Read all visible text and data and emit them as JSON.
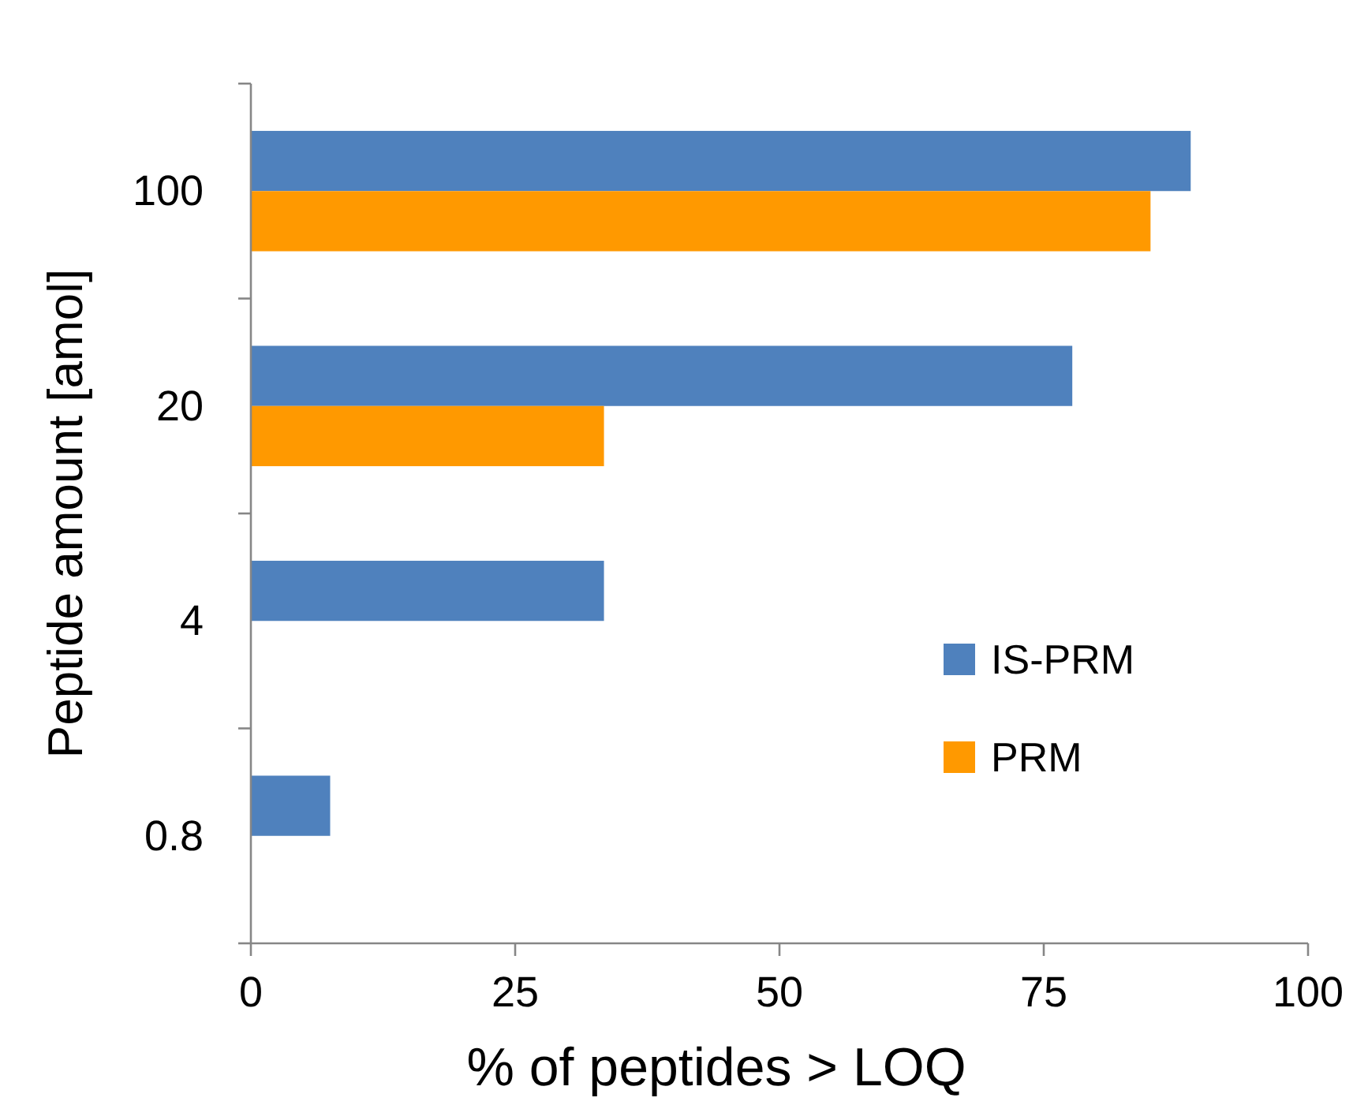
{
  "chart_data": {
    "type": "bar",
    "orientation": "horizontal",
    "xlabel": "% of peptides > LOQ",
    "ylabel": "Peptide amount [amol]",
    "categories": [
      "100",
      "20",
      "4",
      "0.8"
    ],
    "series": [
      {
        "name": "IS-PRM",
        "color": "#4f81bd",
        "values": [
          88.9,
          77.7,
          33.4,
          7.5
        ]
      },
      {
        "name": "PRM",
        "color": "#ff9900",
        "values": [
          85.1,
          33.4,
          0,
          0
        ]
      }
    ],
    "xlim": [
      0,
      100
    ],
    "xticks": [
      0,
      25,
      50,
      75,
      100
    ],
    "grid": false,
    "legend": "right"
  }
}
